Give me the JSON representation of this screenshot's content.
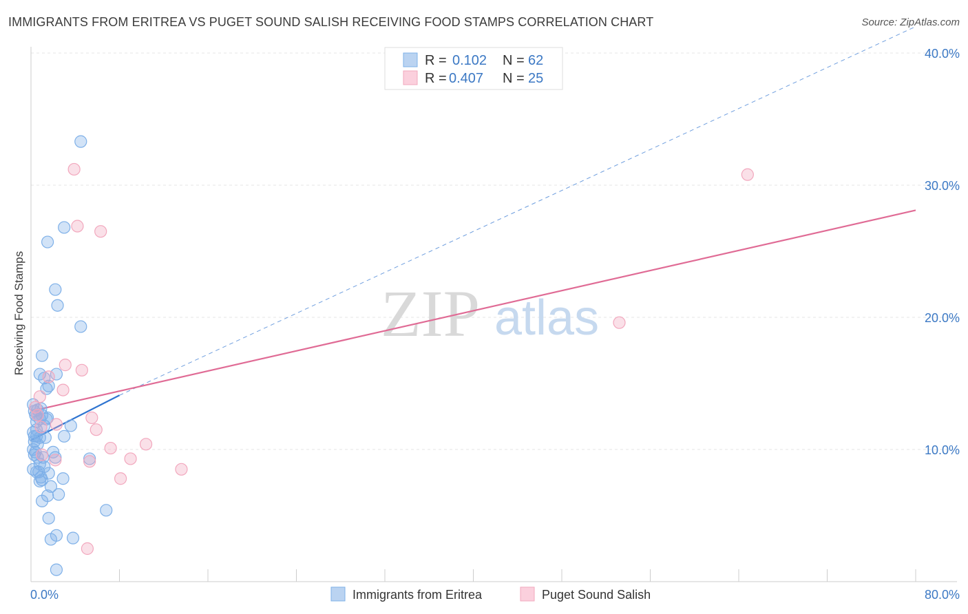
{
  "title": "IMMIGRANTS FROM ERITREA VS PUGET SOUND SALISH RECEIVING FOOD STAMPS CORRELATION CHART",
  "source": "Source: ZipAtlas.com",
  "watermark": {
    "zip": "ZIP",
    "atlas": "atlas"
  },
  "legend_top": [
    {
      "r_label": "R =",
      "r_value": "0.102",
      "n_label": "N =",
      "n_value": "62"
    },
    {
      "r_label": "R =",
      "r_value": "0.407",
      "n_label": "N =",
      "n_value": "25"
    }
  ],
  "chart_data": {
    "type": "scatter",
    "title": "IMMIGRANTS FROM ERITREA VS PUGET SOUND SALISH RECEIVING FOOD STAMPS CORRELATION CHART",
    "xlabel": "",
    "ylabel": "Receiving Food Stamps",
    "xlim": [
      0,
      80
    ],
    "ylim": [
      0,
      40
    ],
    "x_tick_labels": [
      "0.0%",
      "80.0%"
    ],
    "y_ticks": [
      10,
      20,
      30,
      40
    ],
    "y_tick_labels": [
      "10.0%",
      "20.0%",
      "30.0%",
      "40.0%"
    ],
    "grid": true,
    "legend_position": "top-center",
    "colors": {
      "eritrea": "#7eb0e8",
      "eritrea_line": "#2f74d0",
      "salish": "#f2a7bd",
      "salish_line": "#e06b95"
    },
    "series": [
      {
        "name": "Immigrants from Eritrea",
        "color": "#7eb0e8",
        "points": [
          [
            4.5,
            33.3
          ],
          [
            3.0,
            26.8
          ],
          [
            1.5,
            25.7
          ],
          [
            2.2,
            22.1
          ],
          [
            2.4,
            20.9
          ],
          [
            4.5,
            19.3
          ],
          [
            1.0,
            17.1
          ],
          [
            0.8,
            15.7
          ],
          [
            2.3,
            15.7
          ],
          [
            1.2,
            15.4
          ],
          [
            1.6,
            14.8
          ],
          [
            1.4,
            14.6
          ],
          [
            0.2,
            13.4
          ],
          [
            0.6,
            13.0
          ],
          [
            0.4,
            12.6
          ],
          [
            0.6,
            12.6
          ],
          [
            1.0,
            12.6
          ],
          [
            0.8,
            12.3
          ],
          [
            1.4,
            12.3
          ],
          [
            0.5,
            12.1
          ],
          [
            1.2,
            11.8
          ],
          [
            3.6,
            11.8
          ],
          [
            0.2,
            11.3
          ],
          [
            0.3,
            11.0
          ],
          [
            0.5,
            11.0
          ],
          [
            0.8,
            10.9
          ],
          [
            1.3,
            10.9
          ],
          [
            3.0,
            11.0
          ],
          [
            0.3,
            10.6
          ],
          [
            0.6,
            10.4
          ],
          [
            0.4,
            9.8
          ],
          [
            2.0,
            9.8
          ],
          [
            0.3,
            9.6
          ],
          [
            0.6,
            9.4
          ],
          [
            1.1,
            9.4
          ],
          [
            2.2,
            9.4
          ],
          [
            5.3,
            9.3
          ],
          [
            0.8,
            8.9
          ],
          [
            1.2,
            8.7
          ],
          [
            0.2,
            8.5
          ],
          [
            0.5,
            8.3
          ],
          [
            0.7,
            8.3
          ],
          [
            1.6,
            8.2
          ],
          [
            0.9,
            7.9
          ],
          [
            1.0,
            7.7
          ],
          [
            2.9,
            7.8
          ],
          [
            0.8,
            7.6
          ],
          [
            1.8,
            7.2
          ],
          [
            2.5,
            6.6
          ],
          [
            1.5,
            6.5
          ],
          [
            1.0,
            6.1
          ],
          [
            6.8,
            5.4
          ],
          [
            1.6,
            4.8
          ],
          [
            2.3,
            3.5
          ],
          [
            1.8,
            3.2
          ],
          [
            3.8,
            3.3
          ],
          [
            2.3,
            0.9
          ],
          [
            0.3,
            12.9
          ],
          [
            0.9,
            13.1
          ],
          [
            1.5,
            12.4
          ],
          [
            0.2,
            10.0
          ],
          [
            0.5,
            11.5
          ]
        ]
      },
      {
        "name": "Puget Sound Salish",
        "color": "#f2a7bd",
        "points": [
          [
            3.9,
            31.2
          ],
          [
            4.2,
            26.9
          ],
          [
            6.3,
            26.5
          ],
          [
            64.8,
            30.8
          ],
          [
            53.2,
            19.6
          ],
          [
            3.1,
            16.4
          ],
          [
            4.6,
            16.0
          ],
          [
            1.6,
            15.5
          ],
          [
            0.8,
            14.0
          ],
          [
            2.9,
            14.5
          ],
          [
            0.4,
            13.2
          ],
          [
            5.5,
            12.4
          ],
          [
            2.3,
            11.9
          ],
          [
            5.9,
            11.5
          ],
          [
            0.9,
            11.7
          ],
          [
            10.4,
            10.4
          ],
          [
            7.2,
            10.1
          ],
          [
            1.0,
            9.6
          ],
          [
            2.2,
            9.2
          ],
          [
            9.0,
            9.3
          ],
          [
            5.3,
            9.1
          ],
          [
            13.6,
            8.5
          ],
          [
            8.1,
            7.8
          ],
          [
            5.1,
            2.5
          ],
          [
            0.6,
            12.6
          ]
        ]
      }
    ],
    "trend_lines": [
      {
        "series": "Immigrants from Eritrea",
        "style": "solid",
        "from": [
          0,
          10.7
        ],
        "to": [
          8,
          14.1
        ]
      },
      {
        "series": "Immigrants from Eritrea",
        "style": "dashed",
        "from": [
          8,
          14.1
        ],
        "to": [
          80,
          42.0
        ]
      },
      {
        "series": "Puget Sound Salish",
        "style": "solid",
        "from": [
          0,
          12.9
        ],
        "to": [
          80,
          28.1
        ]
      }
    ]
  }
}
